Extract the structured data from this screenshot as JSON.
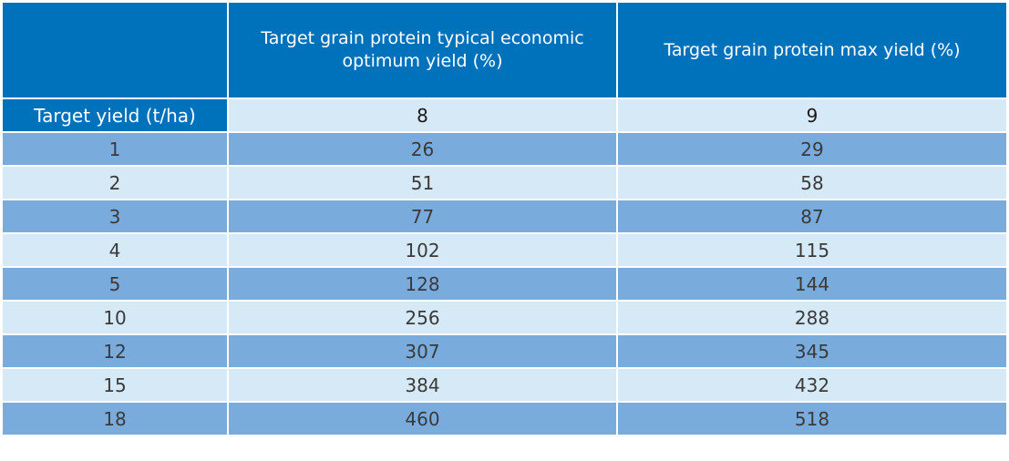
{
  "table": {
    "headers": [
      "",
      "Target grain protein typical economic optimum yield (%)",
      "Target grain protein max yield (%)"
    ],
    "subheader": {
      "label": "Target yield (t/ha)",
      "values": [
        "8",
        "9"
      ]
    },
    "rows": [
      [
        "1",
        "26",
        "29"
      ],
      [
        "2",
        "51",
        "58"
      ],
      [
        "3",
        "77",
        "87"
      ],
      [
        "4",
        "102",
        "115"
      ],
      [
        "5",
        "128",
        "144"
      ],
      [
        "10",
        "256",
        "288"
      ],
      [
        "12",
        "307",
        "345"
      ],
      [
        "15",
        "384",
        "432"
      ],
      [
        "18",
        "460",
        "518"
      ]
    ],
    "colors": {
      "header_bg": "#0072bc",
      "row_dark": "#7aabdd",
      "row_light": "#d6e9f6"
    }
  }
}
